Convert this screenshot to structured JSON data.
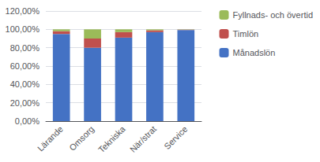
{
  "chart_data": {
    "type": "bar",
    "stacked": true,
    "categories": [
      "Lärande",
      "Omsorg",
      "Tekniska",
      "När/strat",
      "Service"
    ],
    "series": [
      {
        "name": "Månadslön",
        "color": "#4472C4",
        "values": [
          0.95,
          0.8,
          0.91,
          0.97,
          0.993
        ]
      },
      {
        "name": "Timlön",
        "color": "#C0504D",
        "values": [
          0.03,
          0.1,
          0.06,
          0.02,
          0.004
        ]
      },
      {
        "name": "Fyllnads- och övertid",
        "color": "#9BBB59",
        "values": [
          0.02,
          0.1,
          0.03,
          0.01,
          0.003
        ]
      }
    ],
    "ylim": [
      0.0,
      1.2
    ],
    "yticks": [
      {
        "value": 0.0,
        "label": "0,00%"
      },
      {
        "value": 0.2,
        "label": "20,00%"
      },
      {
        "value": 0.4,
        "label": "40,00%"
      },
      {
        "value": 0.6,
        "label": "60,00%"
      },
      {
        "value": 0.8,
        "label": "80,00%"
      },
      {
        "value": 1.0,
        "label": "100,00%"
      },
      {
        "value": 1.2,
        "label": "120,00%"
      }
    ],
    "grid": true,
    "legend": "right"
  }
}
